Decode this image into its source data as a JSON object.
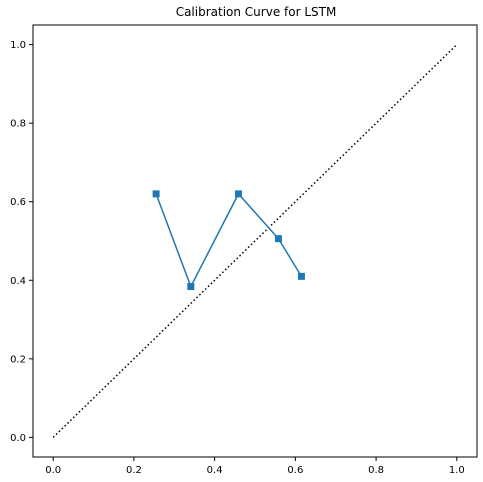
{
  "chart_data": {
    "type": "line",
    "title": "Calibration Curve for LSTM",
    "xlabel": "",
    "ylabel": "",
    "xlim": [
      -0.05,
      1.05
    ],
    "ylim": [
      -0.05,
      1.05
    ],
    "xticks": [
      "0.0",
      "0.2",
      "0.4",
      "0.6",
      "0.8",
      "1.0"
    ],
    "yticks": [
      "0.0",
      "0.2",
      "0.4",
      "0.6",
      "0.8",
      "1.0"
    ],
    "grid": false,
    "legend": "none",
    "reference_line": {
      "style": "dotted",
      "color": "#000000",
      "x": [
        0,
        1
      ],
      "y": [
        0,
        1
      ]
    },
    "series": [
      {
        "color": "#1f77b4",
        "marker": "square",
        "x": [
          0.255,
          0.341,
          0.459,
          0.558,
          0.615
        ],
        "y": [
          0.62,
          0.384,
          0.62,
          0.506,
          0.41
        ]
      }
    ]
  }
}
